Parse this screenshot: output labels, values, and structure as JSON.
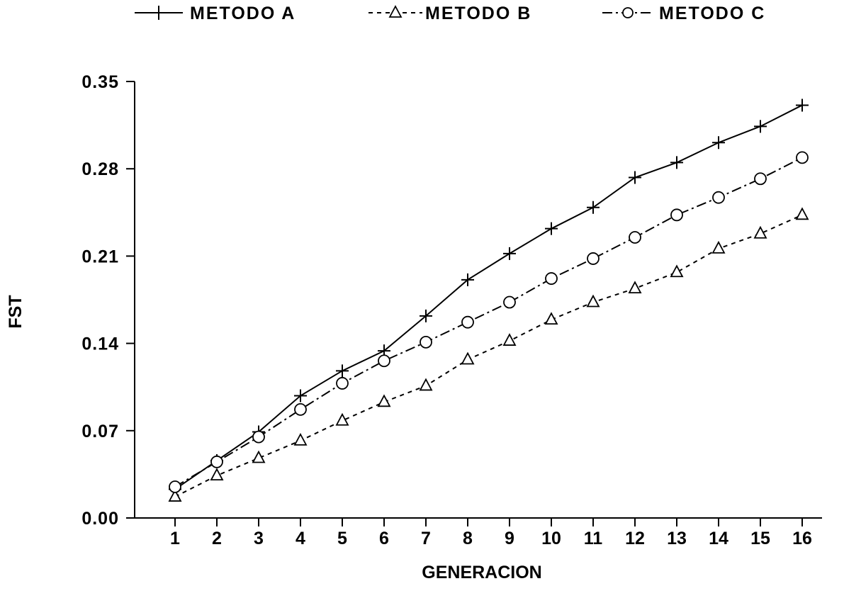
{
  "chart_data": {
    "type": "line",
    "xlabel": "GENERACION",
    "ylabel": "FST",
    "categories": [
      "1",
      "2",
      "3",
      "4",
      "5",
      "6",
      "7",
      "8",
      "9",
      "10",
      "11",
      "12",
      "13",
      "14",
      "15",
      "16"
    ],
    "ylim": [
      0,
      0.35
    ],
    "yticks": [
      "0.00",
      "0.07",
      "0.14",
      "0.21",
      "0.28",
      "0.35"
    ],
    "yticks_values": [
      0,
      0.07,
      0.14,
      0.21,
      0.28,
      0.35
    ],
    "grid": false,
    "legend_position": "top",
    "series": [
      {
        "name": "METODO A",
        "marker": "plus",
        "line_style": "solid",
        "values": [
          0.023,
          0.046,
          0.069,
          0.098,
          0.118,
          0.134,
          0.162,
          0.191,
          0.212,
          0.232,
          0.249,
          0.273,
          0.285,
          0.301,
          0.314,
          0.331
        ]
      },
      {
        "name": "METODO B",
        "marker": "triangle",
        "line_style": "dashed",
        "values": [
          0.017,
          0.034,
          0.048,
          0.062,
          0.078,
          0.093,
          0.106,
          0.127,
          0.142,
          0.159,
          0.173,
          0.184,
          0.197,
          0.216,
          0.228,
          0.243
        ]
      },
      {
        "name": "METODO C",
        "marker": "circle",
        "line_style": "dash-dot",
        "values": [
          0.025,
          0.045,
          0.065,
          0.087,
          0.108,
          0.126,
          0.141,
          0.157,
          0.173,
          0.192,
          0.208,
          0.225,
          0.243,
          0.257,
          0.272,
          0.289
        ]
      }
    ]
  }
}
